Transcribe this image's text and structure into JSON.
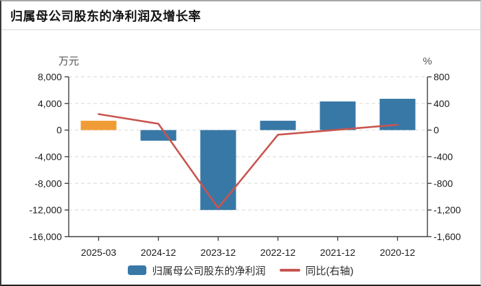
{
  "header": {
    "title": "归属母公司股东的净利润及增长率"
  },
  "chart_data": {
    "type": "bar+line",
    "title": "归属母公司股东的净利润及增长率",
    "categories": [
      "2025-03",
      "2024-12",
      "2023-12",
      "2022-12",
      "2021-12",
      "2020-12"
    ],
    "series": [
      {
        "name": "归属母公司股东的净利润",
        "type": "bar",
        "y_axis": "left",
        "unit": "万元",
        "values": [
          1400,
          -1600,
          -12000,
          1400,
          4300,
          4700
        ],
        "point_colors": [
          "#f09c36",
          "#3878a6",
          "#3878a6",
          "#3878a6",
          "#3878a6",
          "#3878a6"
        ]
      },
      {
        "name": "同比(右轴)",
        "type": "line",
        "y_axis": "right",
        "unit": "%",
        "values": [
          240,
          95,
          -1170,
          -70,
          5,
          80
        ],
        "color": "#c9544f"
      }
    ],
    "left_axis": {
      "unit_label": "万元",
      "min": -16000,
      "max": 8000,
      "ticks": [
        "8,000",
        "4,000",
        "0",
        "-4,000",
        "-8,000",
        "-12,000",
        "-16,000"
      ]
    },
    "right_axis": {
      "unit_label": "%",
      "min": -1600,
      "max": 800,
      "ticks": [
        "800",
        "400",
        "0",
        "-400",
        "-800",
        "-1,200",
        "-1,600"
      ]
    },
    "legend": [
      {
        "label": "归属母公司股东的净利润",
        "color": "#3878a6",
        "swatch": "bar"
      },
      {
        "label": "同比(右轴)",
        "color": "#c9544f",
        "swatch": "line"
      }
    ],
    "grid": true,
    "legend_position": "bottom",
    "style": {
      "grid_color": "#e3e3e3",
      "axis_color": "#3f3f3f",
      "label_color": "#1a1a1a",
      "unit_color": "#555555",
      "background": "#ffffff"
    }
  }
}
